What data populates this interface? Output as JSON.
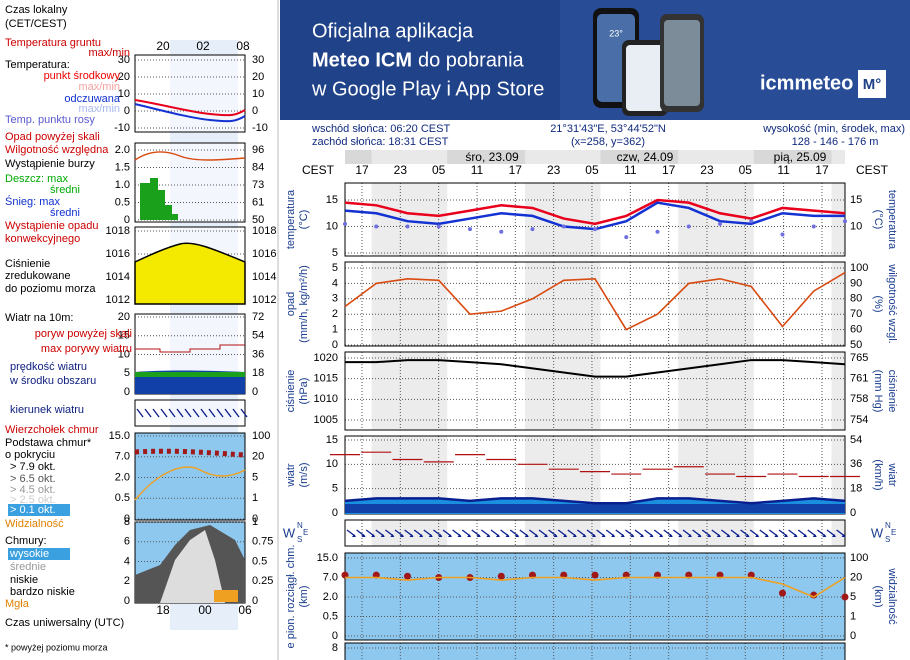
{
  "banner": {
    "line1": "Oficjalna aplikacja",
    "line2_bold": "Meteo ICM",
    "line2": "do pobrania",
    "line3": "w Google Play i App Store",
    "logo": "icmmeteo",
    "badge": "M°",
    "phone_temp": "23°"
  },
  "info": {
    "sunrise": "wschód słońca: 06:20 CEST",
    "sunset": "zachód słońca: 18:31 CEST",
    "coords": "21°31'43\"E, 53°44'52\"N",
    "grid": "(x=258,  y=362)",
    "height_label": "wysokość (min, środek, max)",
    "height": "128 - 146 - 176 m"
  },
  "time_zone": "CEST",
  "dates": [
    "śro, 23.09",
    "czw, 24.09",
    "pią, 25.09"
  ],
  "hours": [
    "17",
    "23",
    "05",
    "11",
    "17",
    "23",
    "05",
    "11",
    "17",
    "23",
    "05",
    "11",
    "17"
  ],
  "main": {
    "temperature": {
      "label_left": "temperatura",
      "unit_left": "(°C)",
      "label_right": "temperatura",
      "unit_right": "(°C)",
      "yticks": [
        15,
        10,
        5
      ],
      "y2ticks": [
        15,
        10
      ],
      "series": [
        {
          "color": "#e8001c",
          "values": [
            14.5,
            14,
            12.5,
            12,
            13,
            14,
            13.5,
            11.5,
            10.5,
            12,
            15,
            14.5,
            12.5,
            11.5,
            13.5,
            13,
            12.5
          ]
        },
        {
          "color": "#1432d2",
          "values": [
            13,
            12.5,
            11,
            10.5,
            11.5,
            12.5,
            12,
            10,
            9.5,
            11,
            14.5,
            13.5,
            11,
            10.5,
            12.5,
            12,
            12
          ]
        }
      ],
      "dew_color": "#6f6fe0",
      "dew": [
        10.5,
        10,
        10,
        10,
        9.5,
        9,
        9.5,
        10,
        9.5,
        8,
        9,
        10,
        10.5,
        11,
        8.5,
        10,
        11
      ]
    },
    "precipitation": {
      "label_left": "opad",
      "unit_left": "(mm/h, kg/m²/h)",
      "label_right": "wilgotność wzgl.",
      "unit_right": "(%)",
      "yticks": [
        5,
        4,
        3,
        2,
        1,
        0
      ],
      "y2ticks": [
        100,
        90,
        80,
        70,
        60,
        50
      ],
      "humidity_color": "#d84a10",
      "humidity": [
        75,
        90,
        93,
        92,
        70,
        72,
        80,
        92,
        93,
        60,
        70,
        90,
        93,
        88,
        62,
        85,
        97
      ]
    },
    "pressure": {
      "label_left": "ciśnienie",
      "unit_left": "(hPa)",
      "label_right": "ciśnienie",
      "unit_right": "(mm Hg)",
      "yticks": [
        1020,
        1015,
        1010,
        1005
      ],
      "y2ticks": [
        765,
        761,
        758,
        754
      ],
      "values": [
        1019,
        1019,
        1019.5,
        1019.5,
        1019,
        1018.5,
        1017.5,
        1016.5,
        1015.5,
        1015.5,
        1016.5,
        1017.5,
        1018.5,
        1019.5,
        1019.5,
        1019,
        1018.5
      ]
    },
    "wind": {
      "label_left": "wiatr",
      "unit_left": "(m/s)",
      "label_right": "wiatr",
      "unit_right": "(km/h)",
      "yticks": [
        15,
        10,
        5,
        0
      ],
      "y2ticks": [
        54,
        36,
        18,
        0
      ],
      "speed": [
        2.5,
        3,
        3,
        3,
        2.5,
        3,
        3,
        2.5,
        2,
        2,
        3,
        3,
        2.5,
        2,
        2.5,
        3,
        2.5
      ],
      "gust": [
        12,
        12.5,
        11,
        10.5,
        12,
        11,
        10,
        9,
        8.5,
        8,
        9,
        9.5,
        8,
        7.5,
        8,
        7.5,
        7.5
      ]
    },
    "direction": {
      "compass": [
        "W",
        "N",
        "S",
        "E"
      ]
    },
    "clouds": {
      "label_left": "e pion. rozciągł. chm.",
      "unit_left": "(km)",
      "label_right": "widzialność",
      "unit_right": "(km)",
      "yticks": [
        {
          "value": 15,
          "label": "15.0"
        },
        {
          "value": 7,
          "label": "7.0"
        },
        {
          "value": 2,
          "label": "2.0"
        },
        {
          "value": 0.5,
          "label": "0.5"
        },
        0
      ],
      "y2ticks": [
        100,
        20,
        5,
        1,
        0
      ],
      "base": [
        8,
        8,
        7.5,
        7,
        7,
        7.5,
        8,
        8,
        8,
        8,
        8,
        8,
        8,
        8,
        3,
        2.5,
        2
      ],
      "visibility": [
        20,
        20,
        18,
        20,
        20,
        18,
        20,
        20,
        18,
        20,
        20,
        20,
        20,
        20,
        15,
        5,
        20
      ]
    },
    "bottom": {
      "yticks": [
        8
      ]
    }
  },
  "legend": {
    "hours_local": [
      "20",
      "02",
      "08"
    ],
    "hours_utc": [
      "18",
      "00",
      "06"
    ],
    "labels": [
      "Czas lokalny",
      "(CET/CEST)",
      "Temperatura gruntu",
      "max/min",
      "Temperatura:",
      "punkt środkowy",
      "max/min",
      "odczuwana",
      "max/min",
      "Temp. punktu rosy",
      "Opad powyżej skali",
      "Wilgotność względna",
      "Wystąpienie burzy",
      "Deszcz: max",
      "średni",
      "Śnieg: max",
      "średni",
      "Wystąpienie opadu",
      "konwekcyjnego",
      "Ciśnienie",
      "zredukowane",
      "do poziomu morza",
      "Wiatr na 10m:",
      "poryw powyżej skali",
      "max porywy wiatru",
      "prędkość wiatru",
      "w środku obszaru",
      "kierunek wiatru",
      "Wierzchołek chmur",
      "Podstawa chmur*",
      "o pokryciu",
      "> 7.9 okt.",
      "> 6.5 okt.",
      "> 4.5 okt.",
      "> 2.5 okt.",
      "> 0.1 okt.",
      "Widzialność",
      "Chmury:",
      "wysokie",
      "średnie",
      "niskie",
      "bardzo niskie",
      "Mgła",
      "Czas uniwersalny (UTC)",
      "* powyżej poziomu morza"
    ],
    "temperature": {
      "yticks": [
        30,
        20,
        10,
        0,
        -10
      ],
      "y2ticks": [
        30,
        20,
        10,
        0,
        -10
      ]
    },
    "precipitation": {
      "yticks": [
        {
          "value": 2,
          "label": "2.0"
        },
        1.5,
        {
          "value": 1,
          "label": "1.0"
        },
        0.5,
        0
      ],
      "y2ticks": [
        96,
        84,
        73,
        61,
        50
      ]
    },
    "pressure": {
      "yticks": [
        1018,
        1016,
        1014,
        1012
      ],
      "y2ticks": [
        1018,
        1016,
        1014,
        1012
      ]
    },
    "wind": {
      "yticks": [
        20,
        15,
        10,
        5,
        0
      ],
      "y2ticks": [
        72,
        54,
        36,
        18,
        0
      ]
    },
    "clouds": {
      "yticks": [
        {
          "value": 15,
          "label": "15.0"
        },
        {
          "value": 7,
          "label": "7.0"
        },
        {
          "value": 2,
          "label": "2.0"
        },
        0.5,
        0
      ],
      "y2ticks": [
        100,
        20,
        5,
        1,
        0
      ]
    },
    "cover": {
      "yticks": [
        8,
        6,
        4,
        2,
        0
      ],
      "y2ticks": [
        1,
        0.75,
        0.5,
        0.25,
        0
      ]
    }
  }
}
